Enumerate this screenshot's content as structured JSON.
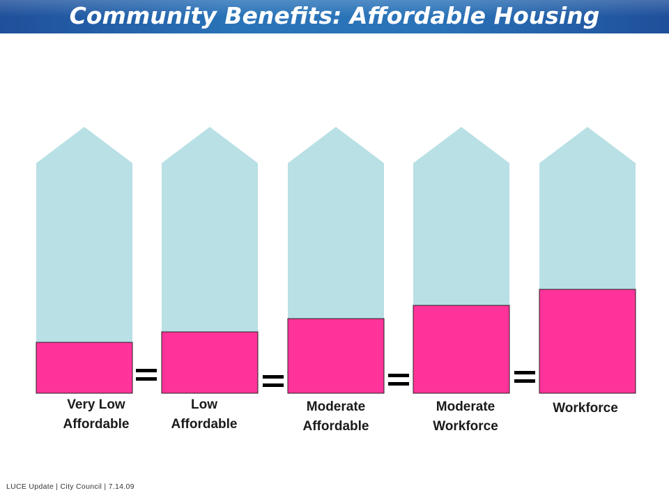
{
  "header": {
    "title": "Community Benefits: Affordable Housing"
  },
  "colors": {
    "tower": "#b8e0e5",
    "fill": "#ff3399",
    "title_bar": "#2a73b8"
  },
  "categories": [
    {
      "line1": "Very Low",
      "line2": "Affordable",
      "fill_fraction": 0.19
    },
    {
      "line1": "Low",
      "line2": "Affordable",
      "fill_fraction": 0.23
    },
    {
      "line1": "Moderate",
      "line2": "Affordable",
      "fill_fraction": 0.28
    },
    {
      "line1": "Moderate",
      "line2": "Workforce",
      "fill_fraction": 0.33
    },
    {
      "line1": "Workforce",
      "line2": "",
      "fill_fraction": 0.39
    }
  ],
  "footer": {
    "text": "LUCE Update  |  City Council  |  7.14.09"
  }
}
